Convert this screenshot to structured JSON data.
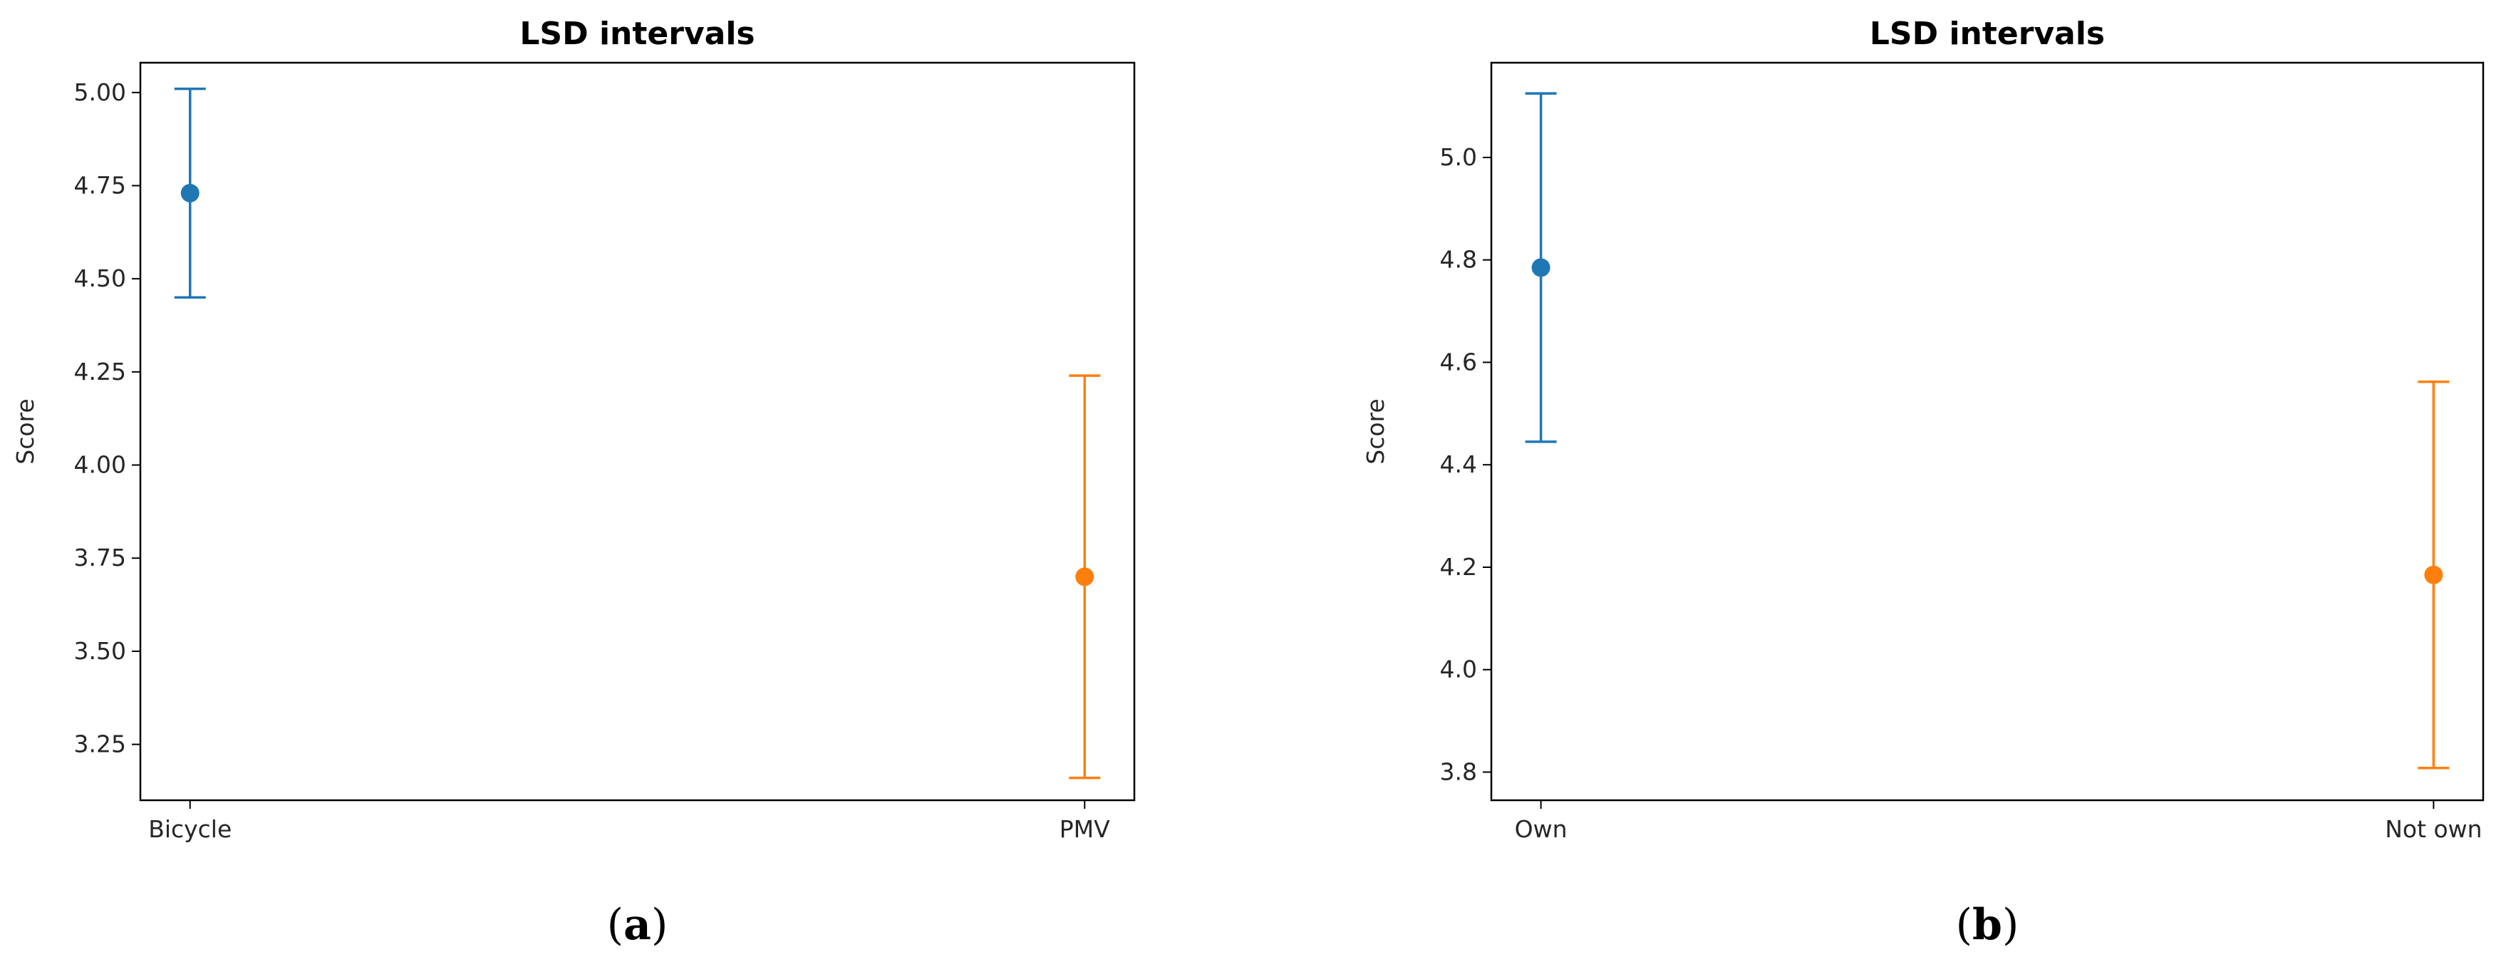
{
  "chart_data": [
    {
      "type": "errorbar",
      "title": "LSD intervals",
      "xlabel": "",
      "ylabel": "Score",
      "categories": [
        "Bicycle",
        "PMV"
      ],
      "means": [
        4.73,
        3.7
      ],
      "lower": [
        4.45,
        3.16
      ],
      "upper": [
        5.01,
        4.24
      ],
      "colors": [
        "#1f77b4",
        "#ff7f0e"
      ],
      "ylim": [
        3.1,
        5.08
      ],
      "yticks": [
        3.25,
        3.5,
        3.75,
        4.0,
        4.25,
        4.5,
        4.75,
        5.0
      ],
      "ytick_labels": [
        "3.25",
        "3.50",
        "3.75",
        "4.00",
        "4.25",
        "4.50",
        "4.75",
        "5.00"
      ],
      "grid": false,
      "panel_prefix": "(",
      "panel_letter": "a",
      "panel_suffix": ")"
    },
    {
      "type": "errorbar",
      "title": "LSD intervals",
      "xlabel": "",
      "ylabel": "Score",
      "categories": [
        "Own",
        "Not own"
      ],
      "means": [
        4.785,
        4.185
      ],
      "lower": [
        4.445,
        3.808
      ],
      "upper": [
        5.125,
        4.562
      ],
      "colors": [
        "#1f77b4",
        "#ff7f0e"
      ],
      "ylim": [
        3.745,
        5.185
      ],
      "yticks": [
        3.8,
        4.0,
        4.2,
        4.4,
        4.6,
        4.8,
        5.0
      ],
      "ytick_labels": [
        "3.8",
        "4.0",
        "4.2",
        "4.4",
        "4.6",
        "4.8",
        "5.0"
      ],
      "grid": false,
      "panel_prefix": "(",
      "panel_letter": "b",
      "panel_suffix": ")"
    }
  ]
}
